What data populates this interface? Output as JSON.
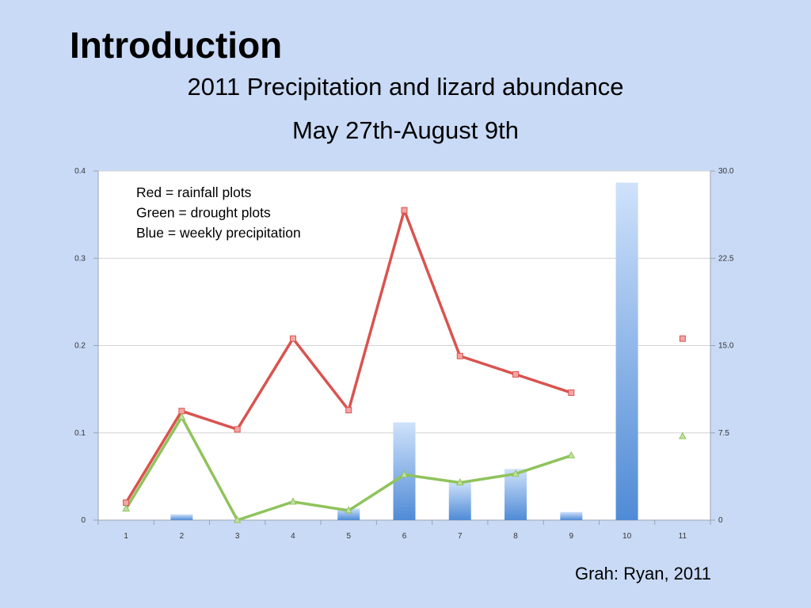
{
  "slide": {
    "title": "Introduction",
    "credit": "Grah: Ryan, 2011"
  },
  "chart_data": {
    "type": "bar",
    "title": "2011 Precipitation and lizard abundance",
    "subtitle": "May 27th-August 9th",
    "categories": [
      "1",
      "2",
      "3",
      "4",
      "5",
      "6",
      "7",
      "8",
      "9",
      "10",
      "11"
    ],
    "legend_placement": "top-left",
    "annotations": [
      "Red = rainfall plots",
      "Green = drought plots",
      "Blue = weekly precipitation"
    ],
    "left_axis": {
      "ylim": [
        0,
        0.4
      ],
      "ticks": [
        "0",
        "0.1",
        "0.2",
        "0.3",
        "0.4"
      ]
    },
    "right_axis": {
      "ylim": [
        0,
        30
      ],
      "ticks": [
        "0",
        "7.5",
        "15.0",
        "22.5",
        "30.0"
      ]
    },
    "grid": true,
    "series": [
      {
        "kind": "bar",
        "axis": "right",
        "color": "#5b93d8",
        "values": [
          0,
          0.5,
          0,
          0,
          1.0,
          8.4,
          3.3,
          4.4,
          0.7,
          29.0,
          0
        ]
      },
      {
        "kind": "line",
        "axis": "left",
        "color": "#d9534f",
        "marker": "square",
        "values": [
          0.02,
          0.125,
          0.104,
          0.208,
          0.126,
          0.355,
          0.188,
          0.167,
          0.146,
          null,
          0.208
        ]
      },
      {
        "kind": "line",
        "axis": "left",
        "color": "#8fc35c",
        "marker": "triangle",
        "values": [
          0.013,
          0.118,
          0.0,
          0.021,
          0.011,
          0.052,
          0.043,
          0.053,
          0.074,
          null,
          0.096
        ]
      }
    ]
  }
}
